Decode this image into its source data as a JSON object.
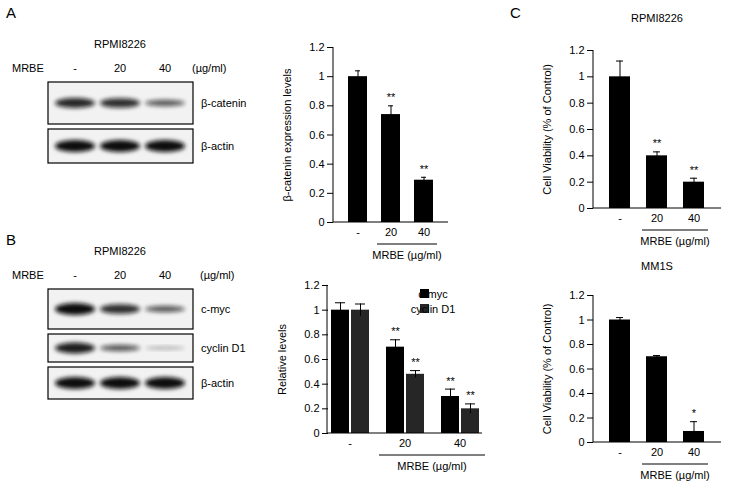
{
  "panels": [
    "A",
    "B",
    "C"
  ],
  "blots": [
    {
      "cell_line": "RPMI8226",
      "treatment": "MRBE",
      "lanes": [
        "-",
        "20",
        "40"
      ],
      "unit": "(µg/ml)",
      "proteins": [
        "β-catenin",
        "β-actin"
      ]
    },
    {
      "cell_line": "RPMI8226",
      "treatment": "MRBE",
      "lanes": [
        "-",
        "20",
        "40"
      ],
      "unit": "(µg/ml)",
      "proteins": [
        "c-myc",
        "cyclin D1",
        "β-actin"
      ]
    }
  ],
  "chart_data": [
    {
      "type": "bar",
      "ylabel": "β-catenin expression levels",
      "xlabel": "MRBE (µg/ml)",
      "categories": [
        "-",
        "20",
        "40"
      ],
      "values": [
        1,
        0.74,
        0.29
      ],
      "errors": [
        0.04,
        0.06,
        0.02
      ],
      "annotations": [
        null,
        "**",
        "**"
      ],
      "color": "#000000",
      "ylim": [
        0,
        1.2
      ],
      "yticks": [
        0,
        0.2,
        0.4,
        0.6,
        0.8,
        1,
        1.2
      ]
    },
    {
      "type": "bar",
      "ylabel": "Relative levels",
      "xlabel": "MRBE (µg/ml)",
      "legend": "top-right",
      "categories": [
        "-",
        "20",
        "40"
      ],
      "series": [
        {
          "name": "c-myc",
          "color": "#000000",
          "values": [
            1,
            0.7,
            0.3
          ],
          "errors": [
            0.06,
            0.06,
            0.06
          ],
          "annotations": [
            null,
            "**",
            "**"
          ]
        },
        {
          "name": "cyclin D1",
          "color": "#262626",
          "values": [
            1,
            0.48,
            0.2
          ],
          "errors": [
            0.05,
            0.03,
            0.04
          ],
          "annotations": [
            null,
            "**",
            "**"
          ]
        }
      ],
      "ylim": [
        0,
        1.2
      ],
      "yticks": [
        0,
        0.2,
        0.4,
        0.6,
        0.8,
        1,
        1.2
      ]
    },
    {
      "type": "bar",
      "title": "RPMI8226",
      "ylabel": "Cell Viability (% of Control)",
      "xlabel": "MRBE (µg/ml)",
      "categories": [
        "-",
        "20",
        "40"
      ],
      "values": [
        1,
        0.4,
        0.2
      ],
      "errors": [
        0.12,
        0.03,
        0.03
      ],
      "annotations": [
        null,
        "**",
        "**"
      ],
      "color": "#000000",
      "ylim": [
        0,
        1.2
      ],
      "yticks": [
        0,
        0.2,
        0.4,
        0.6,
        0.8,
        1,
        1.2
      ]
    },
    {
      "type": "bar",
      "title": "MM1S",
      "ylabel": "Cell Viability (% of Control)",
      "xlabel": "MRBE (µg/ml)",
      "categories": [
        "-",
        "20",
        "40"
      ],
      "values": [
        1,
        0.7,
        0.09
      ],
      "errors": [
        0.02,
        0.01,
        0.08
      ],
      "annotations": [
        null,
        null,
        "*"
      ],
      "color": "#000000",
      "ylim": [
        0,
        1.2
      ],
      "yticks": [
        0,
        0.2,
        0.4,
        0.6,
        0.8,
        1,
        1.2
      ]
    }
  ]
}
